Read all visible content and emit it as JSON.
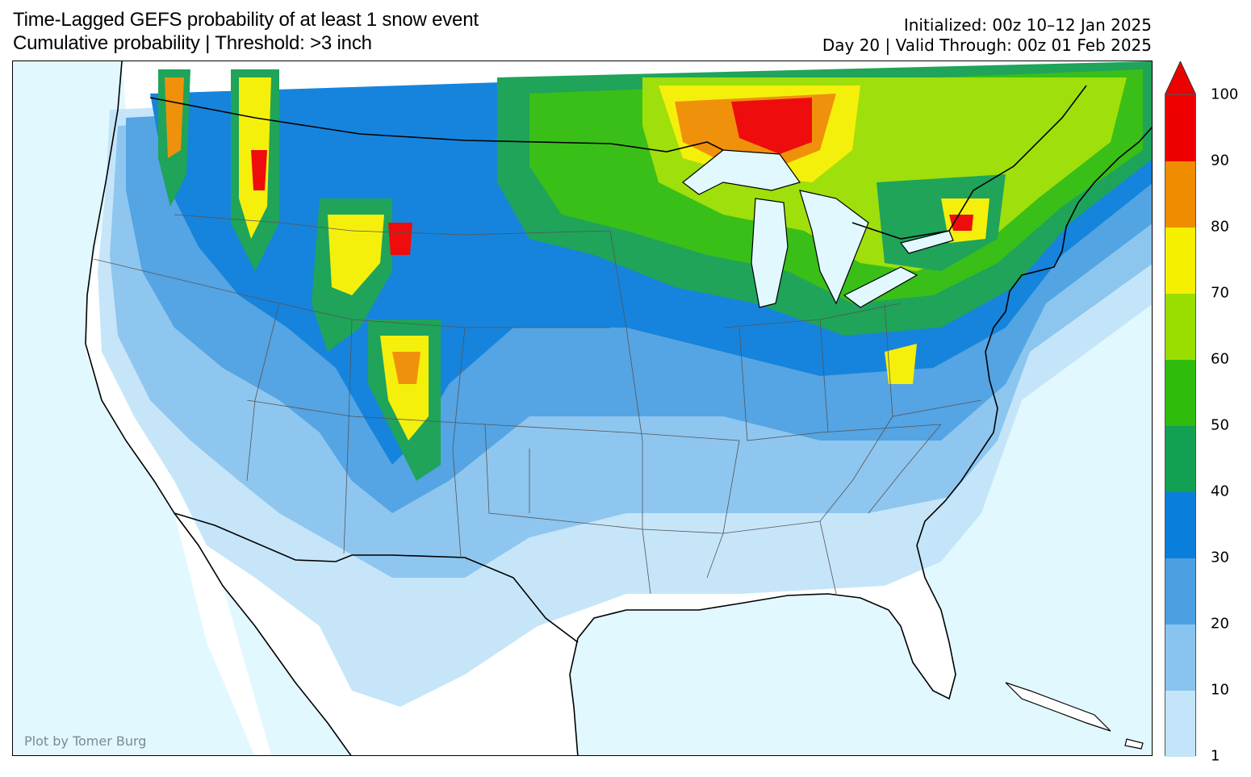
{
  "title": {
    "line1": "Time-Lagged GEFS probability of at least 1 snow event",
    "line2": "Cumulative probability | Threshold: >3 inch"
  },
  "meta": {
    "initialized": "Initialized: 00z 10–12 Jan 2025",
    "valid": "Day 20 | Valid Through: 00z 01 Feb 2025"
  },
  "credit": "Plot by Tomer Burg",
  "colorbar": {
    "ticks": [
      "1",
      "10",
      "20",
      "30",
      "40",
      "50",
      "60",
      "70",
      "80",
      "90",
      "100"
    ],
    "colors": [
      "#c3e4f9",
      "#88c4ef",
      "#4ca0e2",
      "#0a7edb",
      "#14a052",
      "#2fbc0c",
      "#9ade00",
      "#f4f000",
      "#f08c00",
      "#ee0000"
    ],
    "extend_color": "#ee0000"
  },
  "map": {
    "ocean_color": "#e1f8ff",
    "land_color": "#ffffff",
    "region": "Contiguous United States"
  }
}
